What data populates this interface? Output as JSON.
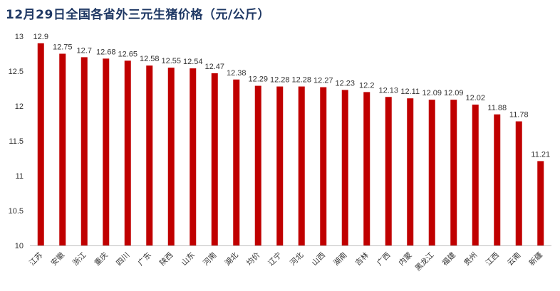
{
  "title": "12月29日全国各省外三元生猪价格（元/公斤）",
  "chart_data": {
    "type": "bar",
    "title": "12月29日全国各省外三元生猪价格（元/公斤）",
    "categories": [
      "江苏",
      "安徽",
      "浙江",
      "重庆",
      "四川",
      "广东",
      "陕西",
      "山东",
      "河南",
      "湖北",
      "均价",
      "辽宁",
      "河北",
      "山西",
      "湖南",
      "吉林",
      "广西",
      "内蒙",
      "黑龙江",
      "福建",
      "贵州",
      "江西",
      "云南",
      "新疆"
    ],
    "values": [
      12.9,
      12.75,
      12.7,
      12.68,
      12.65,
      12.58,
      12.55,
      12.54,
      12.47,
      12.38,
      12.29,
      12.28,
      12.28,
      12.27,
      12.23,
      12.2,
      12.13,
      12.11,
      12.09,
      12.09,
      12.02,
      11.88,
      11.78,
      11.21
    ],
    "value_labels": [
      "12.9",
      "12.75",
      "12.7",
      "12.68",
      "12.65",
      "12.58",
      "12.55",
      "12.54",
      "12.47",
      "12.38",
      "12.29",
      "12.28",
      "12.28",
      "12.27",
      "12.23",
      "12.2",
      "12.13",
      "12.11",
      "12.09",
      "12.09",
      "12.02",
      "11.88",
      "11.78",
      "11.21"
    ],
    "yticks": [
      "13",
      "12.5",
      "12",
      "11.5",
      "11",
      "10.5",
      "10"
    ],
    "ylim": [
      10,
      13
    ],
    "xlabel": "",
    "ylabel": "",
    "grid": false,
    "bar_color": "#c00000"
  }
}
